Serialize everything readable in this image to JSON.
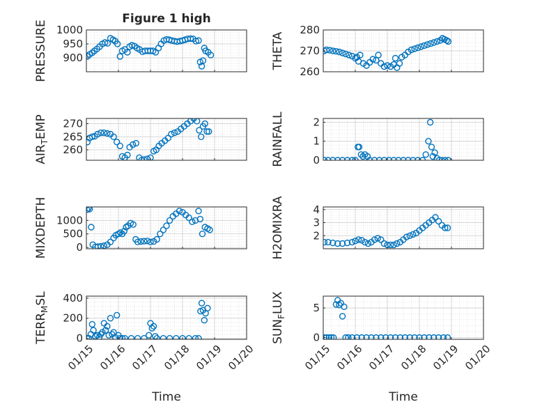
{
  "figure": {
    "title": "Figure 1 high",
    "marker_color": "#0072bd"
  },
  "chart_data": [
    {
      "type": "scatter",
      "ylabel": "PRESSURE",
      "title": "Figure 1 high",
      "xlabel": "",
      "xlim": [
        15,
        20
      ],
      "ylim": [
        850,
        1000
      ],
      "yticks": [
        "900",
        "950",
        "1000"
      ],
      "yticks_v": [
        900,
        950,
        1000
      ],
      "x": [
        15.03,
        15.1,
        15.18,
        15.25,
        15.33,
        15.41,
        15.5,
        15.58,
        15.66,
        15.75,
        15.83,
        15.9,
        15.97,
        16.05,
        16.12,
        16.2,
        16.28,
        16.35,
        16.42,
        16.5,
        16.58,
        16.66,
        16.75,
        16.83,
        16.92,
        17.0,
        17.08,
        17.16,
        17.25,
        17.33,
        17.42,
        17.5,
        17.58,
        17.66,
        17.75,
        17.83,
        17.92,
        18.0,
        18.08,
        18.16,
        18.25,
        18.33,
        18.42,
        18.5,
        18.55,
        18.6,
        18.64,
        18.68,
        18.72,
        18.8,
        18.88
      ],
      "y": [
        905,
        912,
        918,
        925,
        932,
        940,
        950,
        955,
        952,
        970,
        965,
        960,
        950,
        905,
        925,
        930,
        920,
        940,
        945,
        942,
        935,
        930,
        922,
        925,
        925,
        925,
        925,
        920,
        935,
        950,
        962,
        966,
        965,
        962,
        960,
        958,
        960,
        962,
        965,
        968,
        969,
        968,
        960,
        962,
        885,
        870,
        890,
        935,
        925,
        920,
        910
      ]
    },
    {
      "type": "scatter",
      "ylabel": "THETA",
      "xlabel": "",
      "xlim": [
        15,
        20
      ],
      "ylim": [
        260,
        280
      ],
      "yticks": [
        "260",
        "270",
        "280"
      ],
      "yticks_v": [
        260,
        270,
        280
      ],
      "x": [
        15.03,
        15.1,
        15.2,
        15.3,
        15.4,
        15.5,
        15.6,
        15.7,
        15.8,
        15.9,
        16.0,
        16.05,
        16.1,
        16.15,
        16.25,
        16.35,
        16.45,
        16.55,
        16.65,
        16.72,
        16.8,
        16.9,
        17.0,
        17.1,
        17.2,
        17.25,
        17.3,
        17.38,
        17.45,
        17.55,
        17.65,
        17.75,
        17.85,
        17.95,
        18.05,
        18.15,
        18.25,
        18.35,
        18.45,
        18.55,
        18.65,
        18.72,
        18.78,
        18.85,
        18.9
      ],
      "y": [
        270,
        270.5,
        270.3,
        270,
        269.8,
        269.5,
        269,
        268.5,
        268,
        267.5,
        266.5,
        267,
        265,
        268,
        264,
        263,
        264.5,
        266,
        265.5,
        268,
        264,
        262.5,
        263,
        262.5,
        263.5,
        266.5,
        262,
        264,
        267,
        268,
        269.5,
        270.5,
        271,
        271.5,
        272,
        272.5,
        273,
        273.5,
        274,
        274.5,
        275,
        276,
        275.5,
        275,
        274.5
      ]
    },
    {
      "type": "scatter",
      "ylabel": "AIR_TEMP",
      "xlabel": "",
      "xlim": [
        15,
        20
      ],
      "ylim": [
        256,
        272
      ],
      "yticks": [
        "260",
        "265",
        "270"
      ],
      "yticks_v": [
        260,
        265,
        270
      ],
      "x": [
        15.03,
        15.1,
        15.18,
        15.26,
        15.35,
        15.45,
        15.55,
        15.65,
        15.75,
        15.85,
        15.95,
        16.05,
        16.12,
        16.2,
        16.28,
        16.35,
        16.45,
        16.55,
        16.65,
        16.72,
        16.8,
        16.9,
        17.0,
        17.1,
        17.18,
        17.26,
        17.35,
        17.45,
        17.55,
        17.65,
        17.75,
        17.85,
        17.95,
        18.05,
        18.15,
        18.25,
        18.35,
        18.45,
        18.52,
        18.58,
        18.64,
        18.7,
        18.76,
        18.82
      ],
      "y": [
        263,
        264.5,
        265,
        265.2,
        266,
        266.5,
        266.5,
        266.3,
        266,
        265,
        263,
        261.5,
        257.5,
        257,
        258,
        261,
        262,
        262.5,
        257,
        256,
        256.3,
        256.5,
        257,
        259.5,
        260,
        261.5,
        262.5,
        263.5,
        264.5,
        266,
        266.5,
        267,
        268,
        269,
        270,
        271,
        272,
        271,
        267.5,
        265,
        269,
        270,
        267,
        267
      ]
    },
    {
      "type": "scatter",
      "ylabel": "RAINFALL",
      "xlabel": "",
      "xlim": [
        15,
        20
      ],
      "ylim": [
        0,
        2.2
      ],
      "yticks": [
        "0",
        "1",
        "2"
      ],
      "yticks_v": [
        0,
        1,
        2
      ],
      "x": [
        15.03,
        15.15,
        15.3,
        15.45,
        15.6,
        15.75,
        15.9,
        16.0,
        16.08,
        16.12,
        16.18,
        16.24,
        16.3,
        16.38,
        16.45,
        16.6,
        16.75,
        16.9,
        17.05,
        17.2,
        17.35,
        17.5,
        17.65,
        17.8,
        17.95,
        18.1,
        18.2,
        18.28,
        18.34,
        18.38,
        18.42,
        18.48,
        18.55,
        18.62,
        18.7,
        18.8,
        18.9
      ],
      "y": [
        0,
        0,
        0,
        0,
        0,
        0,
        0,
        0,
        0.7,
        0.7,
        0.3,
        0.2,
        0.3,
        0.2,
        0,
        0,
        0,
        0,
        0,
        0,
        0,
        0,
        0,
        0,
        0,
        0,
        0.3,
        1.0,
        2.0,
        0.7,
        0.2,
        0.4,
        0.1,
        0,
        0,
        0,
        0
      ]
    },
    {
      "type": "scatter",
      "ylabel": "MIXDEPTH",
      "xlabel": "",
      "xlim": [
        15,
        20
      ],
      "ylim": [
        -50,
        1500
      ],
      "yticks": [
        "0",
        "500",
        "1000"
      ],
      "yticks_v": [
        0,
        500,
        1000
      ],
      "x": [
        15.02,
        15.06,
        15.1,
        15.15,
        15.2,
        15.28,
        15.36,
        15.45,
        15.55,
        15.65,
        15.75,
        15.85,
        15.92,
        16.0,
        16.06,
        16.12,
        16.18,
        16.24,
        16.3,
        16.38,
        16.46,
        16.54,
        16.6,
        16.7,
        16.8,
        16.9,
        17.0,
        17.1,
        17.2,
        17.3,
        17.4,
        17.5,
        17.6,
        17.7,
        17.8,
        17.9,
        18.0,
        18.1,
        18.2,
        18.3,
        18.4,
        18.5,
        18.55,
        18.62,
        18.7,
        18.78,
        18.85
      ],
      "y": [
        1400,
        1450,
        1420,
        750,
        100,
        20,
        30,
        40,
        60,
        100,
        200,
        350,
        450,
        500,
        550,
        500,
        600,
        750,
        800,
        900,
        850,
        300,
        200,
        220,
        230,
        240,
        200,
        220,
        300,
        500,
        650,
        800,
        1000,
        1150,
        1250,
        1350,
        1300,
        1200,
        1100,
        950,
        1000,
        1350,
        1050,
        500,
        750,
        700,
        650
      ]
    },
    {
      "type": "scatter",
      "ylabel": "H2OMIXRA",
      "xlabel": "",
      "xlim": [
        15,
        20
      ],
      "ylim": [
        1,
        4.2
      ],
      "yticks": [
        "2",
        "3",
        "4"
      ],
      "yticks_v": [
        2,
        3,
        4
      ],
      "x": [
        15.03,
        15.15,
        15.3,
        15.45,
        15.6,
        15.75,
        15.9,
        16.0,
        16.1,
        16.2,
        16.3,
        16.4,
        16.5,
        16.6,
        16.7,
        16.8,
        16.9,
        17.0,
        17.1,
        17.2,
        17.3,
        17.4,
        17.5,
        17.6,
        17.7,
        17.8,
        17.9,
        18.0,
        18.1,
        18.2,
        18.3,
        18.4,
        18.5,
        18.6,
        18.7,
        18.8,
        18.88
      ],
      "y": [
        1.5,
        1.5,
        1.45,
        1.4,
        1.4,
        1.45,
        1.5,
        1.6,
        1.7,
        1.65,
        1.5,
        1.4,
        1.5,
        1.7,
        1.8,
        1.7,
        1.4,
        1.3,
        1.3,
        1.3,
        1.4,
        1.5,
        1.7,
        1.9,
        2.0,
        2.1,
        2.2,
        2.4,
        2.6,
        2.8,
        3.0,
        3.2,
        3.4,
        3.1,
        2.8,
        2.6,
        2.6
      ]
    },
    {
      "type": "scatter",
      "ylabel": "TERR_MSL",
      "xlabel": "Time",
      "xlim": [
        15,
        20
      ],
      "ylim": [
        -10,
        420
      ],
      "yticks": [
        "0",
        "200",
        "400"
      ],
      "yticks_v": [
        0,
        200,
        400
      ],
      "xticks": [
        "01/15",
        "01/16",
        "01/17",
        "01/18",
        "01/19",
        "01/20"
      ],
      "xticks_v": [
        15,
        16,
        17,
        18,
        19,
        20
      ],
      "x": [
        15.02,
        15.08,
        15.14,
        15.18,
        15.22,
        15.28,
        15.34,
        15.4,
        15.45,
        15.5,
        15.55,
        15.6,
        15.65,
        15.7,
        15.75,
        15.8,
        15.85,
        15.9,
        15.95,
        16.0,
        16.05,
        16.12,
        16.2,
        16.4,
        16.6,
        16.8,
        16.95,
        17.0,
        17.05,
        17.1,
        17.15,
        17.2,
        17.4,
        17.6,
        17.8,
        18.0,
        18.2,
        18.4,
        18.5,
        18.56,
        18.6,
        18.64,
        18.68,
        18.72,
        18.78
      ],
      "y": [
        0,
        0,
        40,
        140,
        80,
        20,
        30,
        10,
        40,
        60,
        150,
        80,
        120,
        30,
        200,
        40,
        60,
        10,
        230,
        30,
        0,
        0,
        0,
        0,
        0,
        0,
        30,
        150,
        100,
        120,
        20,
        0,
        0,
        0,
        0,
        0,
        0,
        0,
        0,
        270,
        350,
        280,
        180,
        250,
        300
      ]
    },
    {
      "type": "scatter",
      "ylabel": "SUN_FLUX",
      "xlabel": "Time",
      "xlim": [
        15,
        20
      ],
      "ylim": [
        -0.3,
        7
      ],
      "yticks": [
        "0",
        "5"
      ],
      "yticks_v": [
        0,
        5
      ],
      "xticks": [
        "01/15",
        "01/16",
        "01/17",
        "01/18",
        "01/19",
        "01/20"
      ],
      "xticks_v": [
        15,
        16,
        17,
        18,
        19,
        20
      ],
      "x": [
        15.03,
        15.1,
        15.18,
        15.25,
        15.32,
        15.4,
        15.45,
        15.5,
        15.55,
        15.6,
        15.65,
        15.7,
        15.78,
        15.9,
        16.05,
        16.2,
        16.35,
        16.5,
        16.65,
        16.8,
        16.95,
        17.1,
        17.25,
        17.4,
        17.55,
        17.7,
        17.85,
        18.0,
        18.15,
        18.3,
        18.45,
        18.6,
        18.75,
        18.88
      ],
      "y": [
        0,
        0,
        0,
        0,
        0,
        5.6,
        6.3,
        5.5,
        5.8,
        3.6,
        5.2,
        0,
        0,
        0,
        0,
        0,
        0,
        0,
        0,
        0,
        0,
        0,
        0,
        0,
        0,
        0,
        0,
        0,
        0,
        0,
        0,
        0,
        0,
        0
      ]
    }
  ]
}
